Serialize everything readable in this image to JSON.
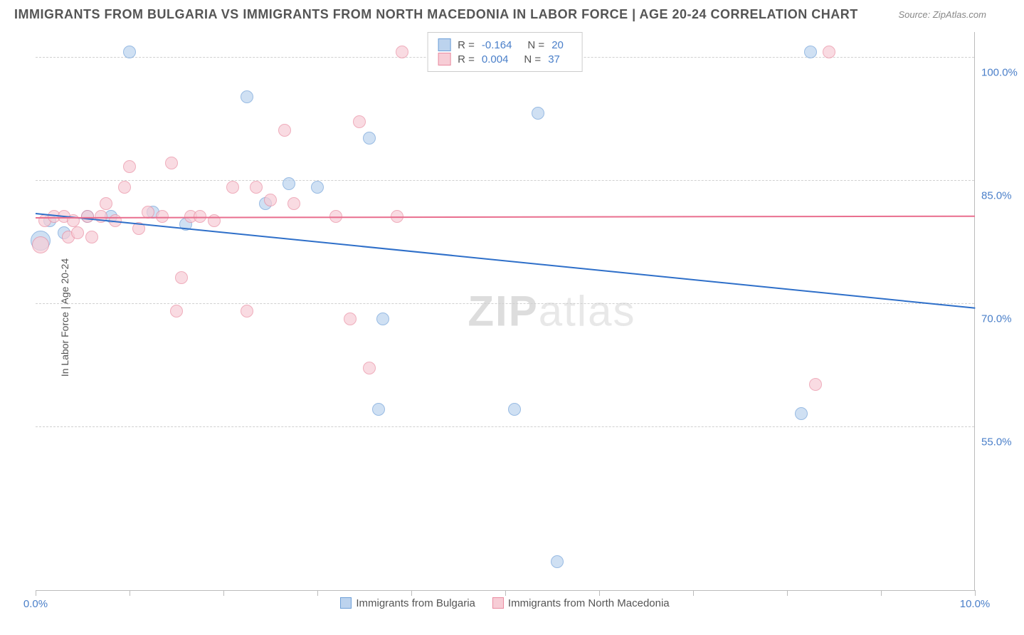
{
  "title": "IMMIGRANTS FROM BULGARIA VS IMMIGRANTS FROM NORTH MACEDONIA IN LABOR FORCE | AGE 20-24 CORRELATION CHART",
  "source_label": "Source: ",
  "source_name": "ZipAtlas.com",
  "y_axis_label": "In Labor Force | Age 20-24",
  "watermark_a": "ZIP",
  "watermark_b": "atlas",
  "chart": {
    "type": "scatter",
    "background_color": "#ffffff",
    "grid_color": "#d0d0d0",
    "axis_color": "#bbbbbb",
    "tick_label_color": "#4a7fc9",
    "text_color": "#555555",
    "xlim": [
      0,
      10
    ],
    "ylim": [
      35,
      103
    ],
    "x_ticks": [
      0,
      1,
      2,
      3,
      4,
      5,
      6,
      7,
      8,
      9,
      10
    ],
    "x_tick_labels": {
      "0": "0.0%",
      "10": "10.0%"
    },
    "y_gridlines": [
      55,
      70,
      85,
      100
    ],
    "y_tick_labels": {
      "55": "55.0%",
      "70": "70.0%",
      "85": "85.0%",
      "100": "100.0%"
    },
    "series": [
      {
        "name": "Immigrants from Bulgaria",
        "color_fill": "#bcd3ee",
        "color_stroke": "#6d9fd8",
        "line_color": "#2e6fc9",
        "marker_radius": 9,
        "marker_opacity": 0.7,
        "trend": {
          "y_start": 81.0,
          "y_end": 69.5
        },
        "stats": {
          "R_label": "R = ",
          "R": "-0.164",
          "N_label": "N = ",
          "N": "20"
        },
        "points": [
          {
            "x": 0.05,
            "y": 77.5,
            "r": 14
          },
          {
            "x": 0.15,
            "y": 80.0
          },
          {
            "x": 0.3,
            "y": 78.5
          },
          {
            "x": 0.55,
            "y": 80.5
          },
          {
            "x": 0.8,
            "y": 80.5
          },
          {
            "x": 1.0,
            "y": 100.5
          },
          {
            "x": 1.25,
            "y": 81.0
          },
          {
            "x": 1.6,
            "y": 79.5
          },
          {
            "x": 2.25,
            "y": 95.0
          },
          {
            "x": 2.45,
            "y": 82.0
          },
          {
            "x": 2.7,
            "y": 84.5
          },
          {
            "x": 3.0,
            "y": 84.0
          },
          {
            "x": 3.55,
            "y": 90.0
          },
          {
            "x": 3.7,
            "y": 68.0
          },
          {
            "x": 3.65,
            "y": 57.0
          },
          {
            "x": 5.1,
            "y": 57.0
          },
          {
            "x": 5.35,
            "y": 93.0
          },
          {
            "x": 5.55,
            "y": 38.5
          },
          {
            "x": 8.15,
            "y": 56.5
          },
          {
            "x": 8.25,
            "y": 100.5
          }
        ]
      },
      {
        "name": "Immigrants from North Macedonia",
        "color_fill": "#f7cdd6",
        "color_stroke": "#e98ba0",
        "line_color": "#e96f8f",
        "marker_radius": 9,
        "marker_opacity": 0.7,
        "trend": {
          "y_start": 80.5,
          "y_end": 80.7
        },
        "stats": {
          "R_label": "R = ",
          "R": "0.004",
          "N_label": "N = ",
          "N": "37"
        },
        "points": [
          {
            "x": 0.05,
            "y": 77.0,
            "r": 12
          },
          {
            "x": 0.1,
            "y": 80.0
          },
          {
            "x": 0.2,
            "y": 80.5
          },
          {
            "x": 0.3,
            "y": 80.5
          },
          {
            "x": 0.35,
            "y": 78.0
          },
          {
            "x": 0.4,
            "y": 80.0
          },
          {
            "x": 0.45,
            "y": 78.5
          },
          {
            "x": 0.55,
            "y": 80.5
          },
          {
            "x": 0.6,
            "y": 78.0
          },
          {
            "x": 0.7,
            "y": 80.5
          },
          {
            "x": 0.75,
            "y": 82.0
          },
          {
            "x": 0.85,
            "y": 80.0
          },
          {
            "x": 0.95,
            "y": 84.0
          },
          {
            "x": 1.0,
            "y": 86.5
          },
          {
            "x": 1.1,
            "y": 79.0
          },
          {
            "x": 1.2,
            "y": 81.0
          },
          {
            "x": 1.35,
            "y": 80.5
          },
          {
            "x": 1.45,
            "y": 87.0
          },
          {
            "x": 1.5,
            "y": 69.0
          },
          {
            "x": 1.55,
            "y": 73.0
          },
          {
            "x": 1.65,
            "y": 80.5
          },
          {
            "x": 1.75,
            "y": 80.5
          },
          {
            "x": 1.9,
            "y": 80.0
          },
          {
            "x": 2.1,
            "y": 84.0
          },
          {
            "x": 2.25,
            "y": 69.0
          },
          {
            "x": 2.35,
            "y": 84.0
          },
          {
            "x": 2.5,
            "y": 82.5
          },
          {
            "x": 2.65,
            "y": 91.0
          },
          {
            "x": 2.75,
            "y": 82.0
          },
          {
            "x": 3.2,
            "y": 80.5
          },
          {
            "x": 3.35,
            "y": 68.0
          },
          {
            "x": 3.45,
            "y": 92.0
          },
          {
            "x": 3.55,
            "y": 62.0
          },
          {
            "x": 3.85,
            "y": 80.5
          },
          {
            "x": 3.9,
            "y": 100.5
          },
          {
            "x": 8.3,
            "y": 60.0
          },
          {
            "x": 8.45,
            "y": 100.5
          }
        ]
      }
    ]
  }
}
